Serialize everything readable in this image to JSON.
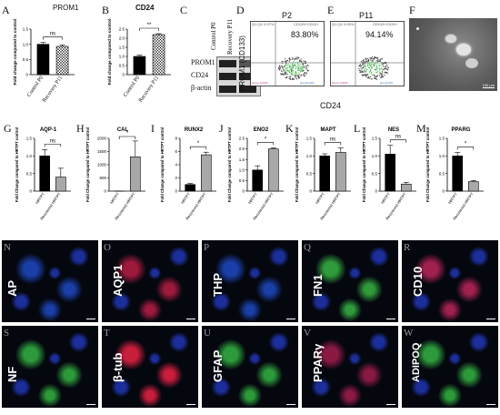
{
  "panels_top": {
    "A": {
      "letter": "A",
      "title": "PROM1",
      "ylabel": "Fold change compared to control",
      "cats": [
        "Control P0",
        "Recovery P11"
      ],
      "values": [
        1.0,
        0.93
      ],
      "err": [
        0.06,
        0.05
      ],
      "ylim": [
        0,
        1.5
      ],
      "ticks": [
        "0",
        "0.5",
        "1.0",
        "1.5"
      ],
      "sig": "ns"
    },
    "B": {
      "letter": "B",
      "title": "CD24",
      "ylabel": "Fold change compared to control",
      "cats": [
        "Control P0",
        "Recovery P11"
      ],
      "values": [
        1.0,
        2.2
      ],
      "err": [
        0.07,
        0.05
      ],
      "ylim": [
        0,
        2.5
      ],
      "ticks": [
        "0",
        "0.5",
        "1.0",
        "1.5",
        "2.0",
        "2.5"
      ],
      "sig": "**"
    },
    "C": {
      "letter": "C",
      "lanes": [
        "Control P0",
        "Recovery P11"
      ],
      "rows": [
        "PROM1",
        "CD24",
        "β-actin"
      ]
    },
    "D": {
      "letter": "D",
      "title": "P2",
      "quad_ul": "Q1-Q1 0.07%",
      "quad_ur": "CD133+CD24+",
      "pct": "83.80%",
      "ylabel": "PROM1 (CD133)"
    },
    "E": {
      "letter": "E",
      "title": "P11",
      "quad_ul": "Q1-Q1 0.00%",
      "quad_ur": "CD133+CD24+",
      "pct": "94.14%"
    },
    "xlabel": "CD24",
    "F": {
      "letter": "F",
      "scalebar": "100 µm"
    }
  },
  "panels_mid": {
    "ylabel": "Fold Change compared to HRTPT control",
    "cats": [
      "HRTPT",
      "Recovered HRTPT"
    ],
    "G": {
      "letter": "G",
      "title": "AQP-1",
      "values": [
        1.0,
        0.4
      ],
      "err": [
        0.18,
        0.25
      ],
      "ylim": [
        0,
        1.5
      ],
      "ticks": [
        "0",
        "0.5",
        "1.0",
        "1.5"
      ],
      "sig": "ns"
    },
    "H": {
      "letter": "H",
      "title": "CAL",
      "values": [
        1,
        1300
      ],
      "err": [
        0.5,
        600
      ],
      "ylim": [
        0,
        2000
      ],
      "ticks": [
        "0",
        "500",
        "1000",
        "1500",
        "2000"
      ],
      "sig": "*"
    },
    "I": {
      "letter": "I",
      "title": "RUNX2",
      "values": [
        1.0,
        5.5
      ],
      "err": [
        0.15,
        0.4
      ],
      "ylim": [
        0,
        8
      ],
      "ticks": [
        "0",
        "2",
        "4",
        "6",
        "8"
      ],
      "sig": "*"
    },
    "J": {
      "letter": "J",
      "title": "ENO2",
      "values": [
        1.0,
        2.0
      ],
      "err": [
        0.2,
        0.05
      ],
      "ylim": [
        0,
        2.5
      ],
      "ticks": [
        "0",
        "0.5",
        "1.0",
        "1.5",
        "2.0",
        "2.5"
      ],
      "sig": "*"
    },
    "K": {
      "letter": "K",
      "title": "MAPT",
      "values": [
        1.0,
        1.1
      ],
      "err": [
        0.06,
        0.13
      ],
      "ylim": [
        0,
        1.5
      ],
      "ticks": [
        "0",
        "0.5",
        "1.0",
        "1.5"
      ],
      "sig": "ns"
    },
    "L": {
      "letter": "L",
      "title": "NES",
      "values": [
        1.05,
        0.2
      ],
      "err": [
        0.25,
        0.05
      ],
      "ylim": [
        0,
        1.5
      ],
      "ticks": [
        "0",
        "0.5",
        "1.0",
        "1.5"
      ],
      "sig": "ns"
    },
    "M": {
      "letter": "M",
      "title": "PPARG",
      "values": [
        1.0,
        0.27
      ],
      "err": [
        0.1,
        0.03
      ],
      "ylim": [
        0,
        1.5
      ],
      "ticks": [
        "0",
        "0.5",
        "1.0",
        "1.5"
      ],
      "sig": "*"
    }
  },
  "micro": [
    {
      "letter": "N",
      "label": "AP",
      "color": "#1a3fa8"
    },
    {
      "letter": "O",
      "label": "AQP1",
      "color": "#9e1a3c"
    },
    {
      "letter": "P",
      "label": "THP",
      "color": "#1a3fa8"
    },
    {
      "letter": "Q",
      "label": "FN1",
      "color": "#2f9a3a"
    },
    {
      "letter": "R",
      "label": "CD10",
      "color": "#a0204e"
    },
    {
      "letter": "S",
      "label": "NF",
      "color": "#2c9a3a"
    },
    {
      "letter": "T",
      "label": "β-tub",
      "color": "#c81e3c"
    },
    {
      "letter": "U",
      "label": "GFAP",
      "color": "#2c9a3a"
    },
    {
      "letter": "V",
      "label": "PPARγ",
      "color": "#8a1a44"
    },
    {
      "letter": "W",
      "label": "ADIPOQ",
      "color": "#2c9a3a"
    }
  ]
}
